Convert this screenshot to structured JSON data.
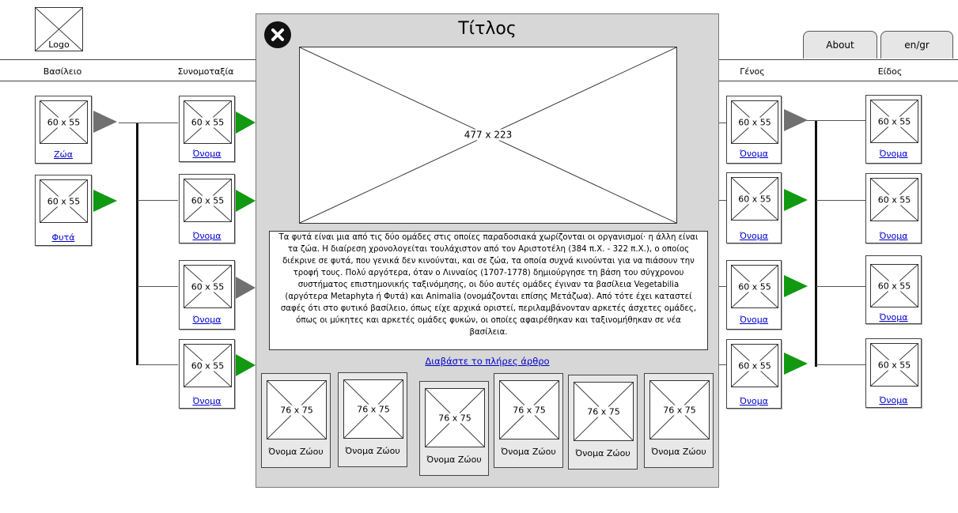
{
  "header": {
    "logo_text": "Logo",
    "tabs": [
      {
        "label": "About"
      },
      {
        "label": "en/gr"
      }
    ]
  },
  "columns": [
    "Βασίλειο",
    "Συνομοταξία",
    "Γένος",
    "Είδος"
  ],
  "image_placeholders": {
    "thumb": "60 x 55",
    "main": "477 x 223",
    "animal": "76 x 75"
  },
  "kingdom": {
    "items": [
      {
        "label": "Ζώα"
      },
      {
        "label": "Φυτά"
      }
    ]
  },
  "phylum": {
    "items": [
      {
        "label": "Όνομα"
      },
      {
        "label": "Όνομα"
      },
      {
        "label": "Όνομα"
      },
      {
        "label": "Όνομα"
      }
    ]
  },
  "genus": {
    "items": [
      {
        "label": "Όνομα"
      },
      {
        "label": "Όνομα"
      },
      {
        "label": "Όνομα"
      },
      {
        "label": "Όνομα"
      }
    ]
  },
  "species": {
    "items": [
      {
        "label": "Όνομα"
      },
      {
        "label": "Όνομα"
      },
      {
        "label": "Όνομα"
      },
      {
        "label": "Όνομα"
      }
    ]
  },
  "modal": {
    "title": "Τίτλος",
    "description": "Τα φυτά είναι μια από τις δύο ομάδες στις οποίες παραδοσιακά χωρίζονται οι οργανισμοί· η άλλη είναι τα ζώα. Η διαίρεση χρονολογείται τουλάχιστον από τον Αριστοτέλη (384 π.Χ. - 322 π.Χ.), ο οποίος διέκρινε σε φυτά, που γενικά δεν κινούνται, και σε ζώα, τα οποία συχνά κινούνται για να πιάσουν την τροφή τους. Πολύ αργότερα, όταν ο Λινναίος (1707-1778) δημιούργησε τη βάση του σύγχρονου συστήματος επιστημονικής ταξινόμησης, οι δύο αυτές ομάδες έγιναν τα βασίλεια Vegetabilia (αργότερα Metaphyta ή Φυτά) και Animalia (ονομάζονται επίσης Μετάζωα). Από τότε έχει καταστεί σαφές ότι στο φυτικό βασίλειο, όπως είχε αρχικά οριστεί, περιλαμβάνονταν αρκετές άσχετες ομάδες, όπως οι μύκητες και αρκετές ομάδες φυκών, οι οποίες αφαιρέθηκαν και ταξινομήθηκαν σε νέα βασίλεια.",
    "read_more": "Διαβάστε το πλήρες άρθρο",
    "animals": [
      {
        "label": "Όνομα Ζώου"
      },
      {
        "label": "Όνομα Ζώου"
      },
      {
        "label": "Όνομα Ζώου"
      },
      {
        "label": "Όνομα Ζώου"
      },
      {
        "label": "Όνομα Ζώου"
      },
      {
        "label": "Όνομα Ζώου"
      }
    ]
  },
  "colors": {
    "arrow_active": "#119911",
    "arrow_inactive": "#707070",
    "link": "#0000cc"
  }
}
